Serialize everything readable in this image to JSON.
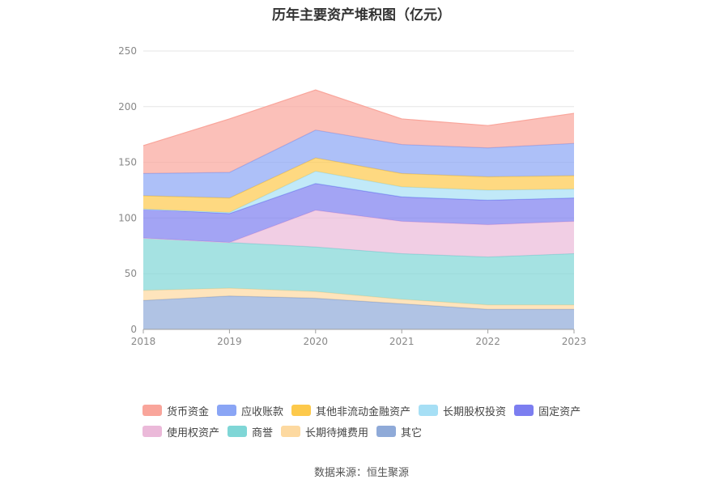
{
  "chart_data": {
    "type": "area",
    "title": "历年主要资产堆积图（亿元）",
    "x": [
      "2018",
      "2019",
      "2020",
      "2021",
      "2022",
      "2023"
    ],
    "ylim": [
      0,
      250
    ],
    "yticks": [
      0,
      50,
      100,
      150,
      200,
      250
    ],
    "stacked": true,
    "grid": true,
    "legend_position": "bottom",
    "series": [
      {
        "name": "其它",
        "color": "#8faad8",
        "values": [
          26,
          30,
          28,
          23,
          18,
          18
        ]
      },
      {
        "name": "长期待摊费用",
        "color": "#fdd9a0",
        "values": [
          9,
          7,
          6,
          4,
          4,
          4
        ]
      },
      {
        "name": "商誉",
        "color": "#7fd6d6",
        "values": [
          47,
          41,
          40,
          41,
          43,
          46
        ]
      },
      {
        "name": "使用权资产",
        "color": "#ebb9d9",
        "values": [
          0,
          0,
          33,
          29,
          29,
          29
        ]
      },
      {
        "name": "固定资产",
        "color": "#7c7ef0",
        "values": [
          26,
          26,
          24,
          22,
          22,
          21
        ]
      },
      {
        "name": "长期股权投资",
        "color": "#a6dff5",
        "values": [
          0,
          1,
          11,
          9,
          9,
          8
        ]
      },
      {
        "name": "其他非流动金融资产",
        "color": "#fdc94b",
        "values": [
          12,
          13,
          12,
          12,
          12,
          12
        ]
      },
      {
        "name": "应收账款",
        "color": "#8aa5f5",
        "values": [
          20,
          23,
          25,
          26,
          26,
          29
        ]
      },
      {
        "name": "货币资金",
        "color": "#f9a59b",
        "values": [
          25,
          48,
          36,
          23,
          20,
          27
        ]
      }
    ]
  },
  "legend": {
    "row1": [
      {
        "label": "货币资金",
        "color": "#f9a59b"
      },
      {
        "label": "应收账款",
        "color": "#8aa5f5"
      },
      {
        "label": "其他非流动金融资产",
        "color": "#fdc94b"
      },
      {
        "label": "长期股权投资",
        "color": "#a6dff5"
      },
      {
        "label": "固定资产",
        "color": "#7c7ef0"
      }
    ],
    "row2": [
      {
        "label": "使用权资产",
        "color": "#ebb9d9"
      },
      {
        "label": "商誉",
        "color": "#7fd6d6"
      },
      {
        "label": "长期待摊费用",
        "color": "#fdd9a0"
      },
      {
        "label": "其它",
        "color": "#8faad8"
      }
    ]
  },
  "source": "数据来源：恒生聚源"
}
